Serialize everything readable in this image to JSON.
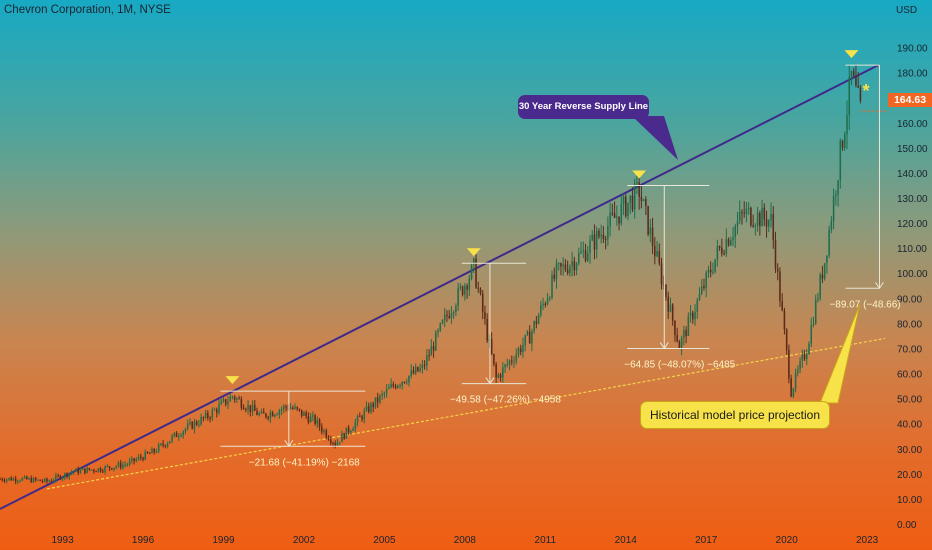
{
  "symbol_title": "Chevron Corporation, 1M, NYSE",
  "currency_label": "USD",
  "last_price_label": "164.63",
  "callouts": {
    "supply_line": "30 Year Reverse Supply Line",
    "model_projection": "Historical model price projection"
  },
  "measurements": [
    {
      "label": "−21.68 (−41.19%) −2168",
      "from_date": "1999-05",
      "to_date": "2003-03",
      "from_price": 53,
      "to_price": 31
    },
    {
      "label": "−49.58 (−47.26%) −4958",
      "from_date": "2008-05",
      "to_date": "2009-03",
      "from_price": 104,
      "to_price": 56
    },
    {
      "label": "−64.85 (−48.07%) −6485",
      "from_date": "2014-07",
      "to_date": "2016-01",
      "from_price": 135,
      "to_price": 70
    },
    {
      "label": "−89.07 (−48.66)",
      "from_date": "2022-06",
      "to_date": "2022-06",
      "from_price": 183,
      "to_price": 94
    }
  ],
  "chart_data": {
    "type": "candlestick",
    "title": "Chevron Corporation, 1M, NYSE",
    "xlabel": "",
    "ylabel": "USD",
    "x_ticks": [
      "1993",
      "1996",
      "1999",
      "2002",
      "2005",
      "2008",
      "2011",
      "2014",
      "2017",
      "2020",
      "2023"
    ],
    "y_ticks": [
      0,
      10,
      20,
      30,
      40,
      50,
      60,
      70,
      80,
      90,
      100,
      110,
      120,
      130,
      140,
      150,
      160,
      170,
      180,
      190
    ],
    "ylim": [
      0,
      195
    ],
    "xlim": [
      "1990-09",
      "2023-09"
    ],
    "grid": false,
    "colors": {
      "up": "#1e6e4e",
      "down": "#5a2a1a",
      "supply_line": "#3f2a8c",
      "support_line": "#f5d34a",
      "accent": "#f26522"
    },
    "price_series": [
      {
        "date": "1990-09",
        "price": 18
      },
      {
        "date": "1991-06",
        "price": 18
      },
      {
        "date": "1992-06",
        "price": 17
      },
      {
        "date": "1993-06",
        "price": 21
      },
      {
        "date": "1994-06",
        "price": 22
      },
      {
        "date": "1995-06",
        "price": 24
      },
      {
        "date": "1996-06",
        "price": 29
      },
      {
        "date": "1997-06",
        "price": 37
      },
      {
        "date": "1998-06",
        "price": 43
      },
      {
        "date": "1999-05",
        "price": 51
      },
      {
        "date": "2000-06",
        "price": 43
      },
      {
        "date": "2001-06",
        "price": 47
      },
      {
        "date": "2002-06",
        "price": 41
      },
      {
        "date": "2003-03",
        "price": 32
      },
      {
        "date": "2004-06",
        "price": 46
      },
      {
        "date": "2005-06",
        "price": 56
      },
      {
        "date": "2006-06",
        "price": 62
      },
      {
        "date": "2007-06",
        "price": 85
      },
      {
        "date": "2008-05",
        "price": 102
      },
      {
        "date": "2009-03",
        "price": 58
      },
      {
        "date": "2010-06",
        "price": 75
      },
      {
        "date": "2011-06",
        "price": 100
      },
      {
        "date": "2012-06",
        "price": 108
      },
      {
        "date": "2013-06",
        "price": 120
      },
      {
        "date": "2014-07",
        "price": 133
      },
      {
        "date": "2015-06",
        "price": 95
      },
      {
        "date": "2016-01",
        "price": 71
      },
      {
        "date": "2017-06",
        "price": 108
      },
      {
        "date": "2018-06",
        "price": 124
      },
      {
        "date": "2019-06",
        "price": 121
      },
      {
        "date": "2020-03",
        "price": 53
      },
      {
        "date": "2020-10",
        "price": 70
      },
      {
        "date": "2021-06",
        "price": 105
      },
      {
        "date": "2022-06",
        "price": 178
      },
      {
        "date": "2022-10",
        "price": 164.63
      }
    ],
    "supply_line": {
      "start": {
        "date": "1990-09",
        "price": 6
      },
      "end": {
        "date": "2023-06",
        "price": 183
      }
    },
    "support_line": {
      "start": {
        "date": "1992-06",
        "price": 14
      },
      "end": {
        "date": "2023-09",
        "price": 74
      }
    },
    "peak_markers": [
      {
        "date": "1999-05",
        "price": 53
      },
      {
        "date": "2008-05",
        "price": 104
      },
      {
        "date": "2014-07",
        "price": 135
      },
      {
        "date": "2022-06",
        "price": 183
      }
    ],
    "last_price": 164.63
  }
}
